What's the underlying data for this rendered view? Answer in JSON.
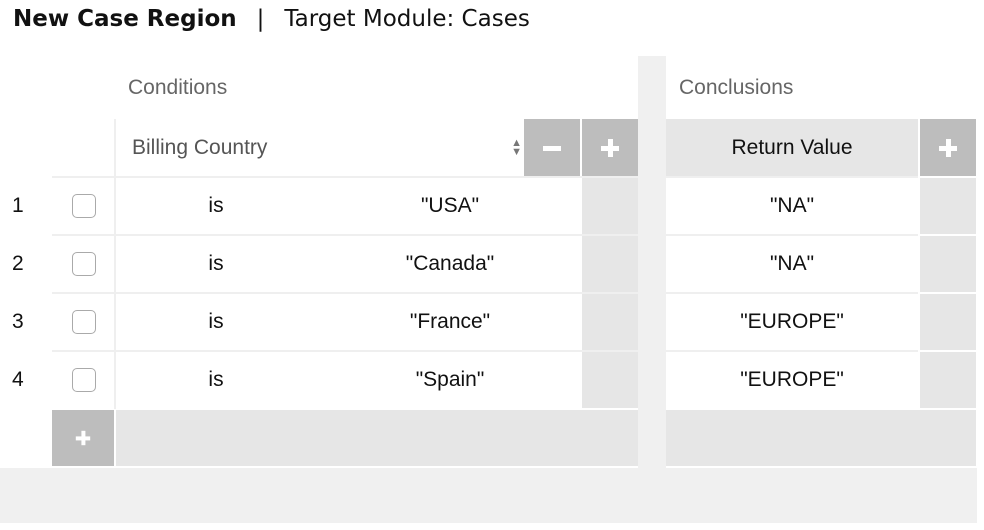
{
  "header": {
    "title": "New Case Region",
    "separator": "|",
    "module": "Target Module: Cases"
  },
  "conditions": {
    "label": "Conditions",
    "column": "Billing Country"
  },
  "conclusions": {
    "label": "Conclusions",
    "column": "Return Value"
  },
  "rows": [
    {
      "num": "1",
      "operator": "is",
      "value": "\"USA\"",
      "result": "\"NA\""
    },
    {
      "num": "2",
      "operator": "is",
      "value": "\"Canada\"",
      "result": "\"NA\""
    },
    {
      "num": "3",
      "operator": "is",
      "value": "\"France\"",
      "result": "\"EUROPE\""
    },
    {
      "num": "4",
      "operator": "is",
      "value": "\"Spain\"",
      "result": "\"EUROPE\""
    }
  ],
  "colors": {
    "button": "#bdbdbd",
    "cell_gray": "#e6e6e6",
    "background_gray": "#f0f0f0"
  }
}
